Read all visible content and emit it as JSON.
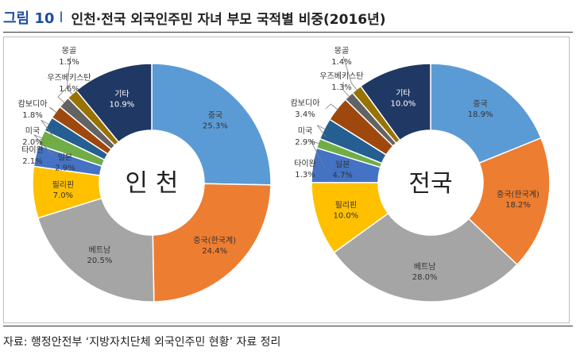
{
  "figure": {
    "label": "그림 10",
    "separator": "l",
    "title": "인천·전국 외국인주민 자녀 부모 국적별 비중(2016년)"
  },
  "source": "자료: 행정안전부 ‘지방자치단체 외국인주민 현황’ 자료 정리",
  "colors": {
    "china": "#5b9bd5",
    "korean_chinese": "#ed7d31",
    "vietnam": "#a5a5a5",
    "philippines": "#ffc000",
    "japan": "#4472c4",
    "thailand": "#70ad47",
    "usa": "#255e91",
    "cambodia": "#9e480e",
    "uzbekistan": "#636363",
    "mongolia": "#997300",
    "other": "#203864"
  },
  "chart_data": [
    {
      "type": "pie",
      "variant": "donut",
      "center_label": "인 천",
      "categories": [
        "중국",
        "중국(한국계)",
        "베트남",
        "필리핀",
        "일본",
        "타이완",
        "미국",
        "캄보디아",
        "우즈베키스탄",
        "몽골",
        "기타"
      ],
      "values": [
        25.3,
        24.4,
        20.5,
        7.0,
        2.9,
        2.1,
        2.0,
        1.8,
        1.6,
        1.5,
        10.9
      ],
      "labels": [
        "25.3%",
        "24.4%",
        "20.5%",
        "7.0%",
        "2.9%",
        "2.1%",
        "2.0%",
        "1.8%",
        "1.6%",
        "1.5%",
        "10.9%"
      ],
      "color_keys": [
        "china",
        "korean_chinese",
        "vietnam",
        "philippines",
        "japan",
        "thailand",
        "usa",
        "cambodia",
        "uzbekistan",
        "mongolia",
        "other"
      ],
      "unit": "%"
    },
    {
      "type": "pie",
      "variant": "donut",
      "center_label": "전국",
      "categories": [
        "중국",
        "중국(한국계)",
        "베트남",
        "필리핀",
        "일본",
        "타이완",
        "미국",
        "캄보디아",
        "우즈베키스탄",
        "몽골",
        "기타"
      ],
      "values": [
        18.9,
        18.2,
        28.0,
        10.0,
        4.7,
        1.3,
        2.9,
        3.4,
        1.3,
        1.4,
        10.0
      ],
      "labels": [
        "18.9%",
        "18.2%",
        "28.0%",
        "10.0%",
        "4.7%",
        "1.3%",
        "2.9%",
        "3.4%",
        "1.3%",
        "1.4%",
        "10.0%"
      ],
      "color_keys": [
        "china",
        "korean_chinese",
        "vietnam",
        "philippines",
        "japan",
        "thailand",
        "usa",
        "cambodia",
        "uzbekistan",
        "mongolia",
        "other"
      ],
      "unit": "%"
    }
  ]
}
